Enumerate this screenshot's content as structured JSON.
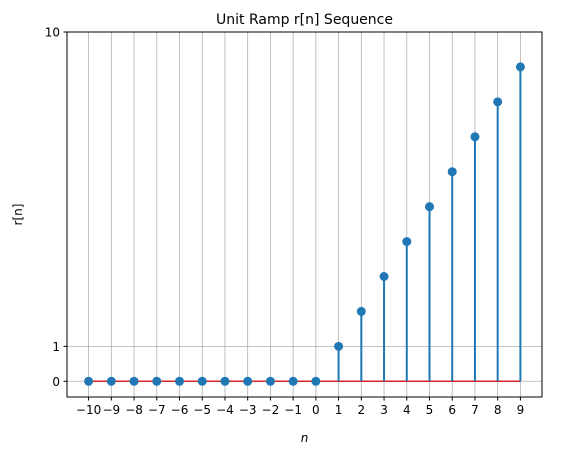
{
  "chart_data": {
    "type": "stem",
    "title": "Unit Ramp r[n] Sequence",
    "xlabel": "n",
    "ylabel": "r[n]",
    "x": [
      -10,
      -9,
      -8,
      -7,
      -6,
      -5,
      -4,
      -3,
      -2,
      -1,
      0,
      1,
      2,
      3,
      4,
      5,
      6,
      7,
      8,
      9
    ],
    "y": [
      0,
      0,
      0,
      0,
      0,
      0,
      0,
      0,
      0,
      0,
      0,
      1,
      2,
      3,
      4,
      5,
      6,
      7,
      8,
      9
    ],
    "x_tick_labels": [
      "−10",
      "−9",
      "−8",
      "−7",
      "−6",
      "−5",
      "−4",
      "−3",
      "−2",
      "−1",
      "0",
      "1",
      "2",
      "3",
      "4",
      "5",
      "6",
      "7",
      "8",
      "9"
    ],
    "y_ticks": [
      0,
      1,
      10
    ],
    "y_tick_labels": [
      "0",
      "1",
      "10"
    ],
    "xlim": [
      -10.95,
      9.95
    ],
    "ylim": [
      -0.45,
      10
    ],
    "grid": true,
    "colors": {
      "stem": "#1f77b4",
      "marker": "#1f77b4",
      "baseline": "#d62728",
      "grid": "#b0b0b0"
    }
  }
}
